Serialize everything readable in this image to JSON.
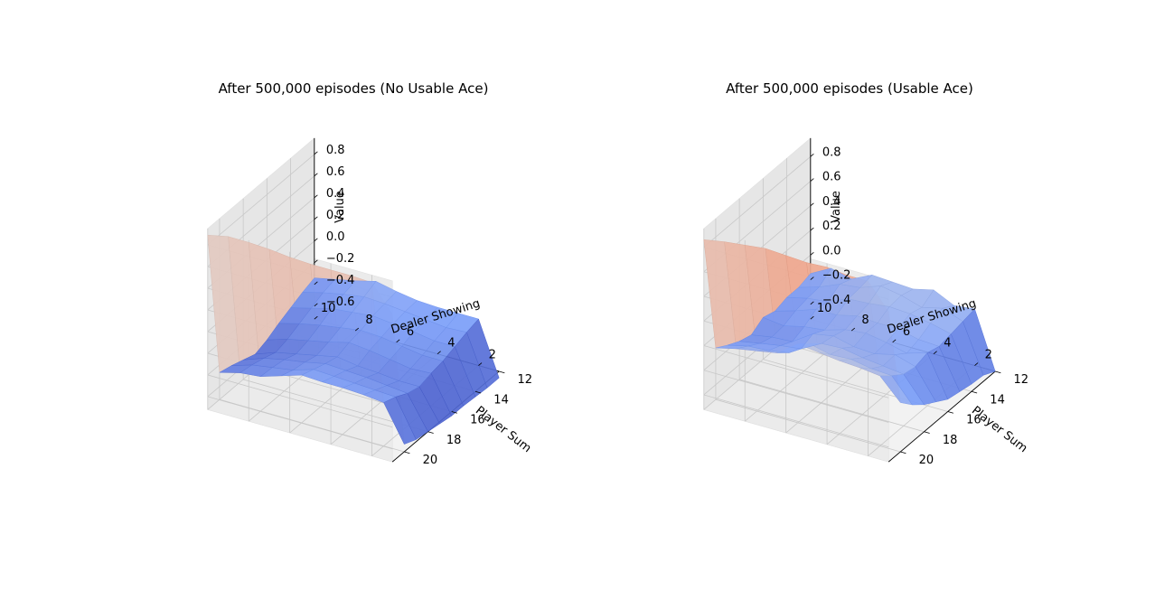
{
  "chart_data": [
    {
      "type": "surface",
      "title": "After 500,000 episodes (No Usable Ace)",
      "xlabel": "Dealer Showing",
      "ylabel": "Player Sum",
      "zlabel": "Value",
      "x": [
        1,
        2,
        3,
        4,
        5,
        6,
        7,
        8,
        9,
        10
      ],
      "y": [
        12,
        13,
        14,
        15,
        16,
        17,
        18,
        19,
        20,
        21
      ],
      "x_ticks": [
        2,
        4,
        6,
        8,
        10
      ],
      "y_ticks": [
        12,
        14,
        16,
        18,
        20
      ],
      "z_ticks": [
        "−0.6",
        "−0.4",
        "−0.2",
        "0.0",
        "0.2",
        "0.4",
        "0.6",
        "0.8"
      ],
      "zlim": [
        -0.72,
        0.95
      ],
      "colormap": "coolwarm",
      "grid": true,
      "z": [
        [
          -0.78,
          -0.29,
          -0.29,
          -0.29,
          -0.28,
          -0.25,
          -0.21,
          -0.26,
          -0.3,
          -0.34
        ],
        [
          -0.78,
          -0.32,
          -0.33,
          -0.31,
          -0.29,
          -0.27,
          -0.26,
          -0.29,
          -0.33,
          -0.38
        ],
        [
          -0.77,
          -0.36,
          -0.36,
          -0.33,
          -0.31,
          -0.29,
          -0.31,
          -0.33,
          -0.38,
          -0.43
        ],
        [
          -0.76,
          -0.4,
          -0.4,
          -0.37,
          -0.34,
          -0.33,
          -0.36,
          -0.39,
          -0.43,
          -0.48
        ],
        [
          -0.76,
          -0.42,
          -0.43,
          -0.4,
          -0.37,
          -0.35,
          -0.4,
          -0.44,
          -0.48,
          -0.54
        ],
        [
          -0.74,
          -0.45,
          -0.45,
          -0.43,
          -0.42,
          -0.39,
          -0.43,
          -0.47,
          -0.51,
          -0.58
        ],
        [
          -0.72,
          -0.42,
          -0.4,
          -0.38,
          -0.37,
          -0.36,
          -0.4,
          -0.43,
          -0.47,
          -0.54
        ],
        [
          -0.7,
          -0.36,
          -0.35,
          -0.34,
          -0.33,
          -0.32,
          -0.38,
          -0.41,
          -0.44,
          -0.5
        ],
        [
          -0.65,
          -0.32,
          -0.3,
          -0.29,
          -0.29,
          -0.28,
          -0.34,
          -0.4,
          -0.42,
          -0.47
        ],
        [
          0.64,
          0.88,
          0.89,
          0.89,
          0.89,
          0.9,
          0.92,
          0.93,
          0.93,
          0.89
        ]
      ]
    },
    {
      "type": "surface",
      "title": "After 500,000 episodes (Usable Ace)",
      "xlabel": "Dealer Showing",
      "ylabel": "Player Sum",
      "zlabel": "Value",
      "x": [
        1,
        2,
        3,
        4,
        5,
        6,
        7,
        8,
        9,
        10
      ],
      "y": [
        12,
        13,
        14,
        15,
        16,
        17,
        18,
        19,
        20,
        21
      ],
      "x_ticks": [
        2,
        4,
        6,
        8,
        10
      ],
      "y_ticks": [
        12,
        14,
        16,
        18,
        20
      ],
      "z_ticks": [
        "−0.4",
        "−0.2",
        "0.0",
        "0.2",
        "0.4",
        "0.6",
        "0.8"
      ],
      "zlim": [
        -0.52,
        0.95
      ],
      "colormap": "coolwarm",
      "grid": true,
      "z": [
        [
          -0.52,
          -0.06,
          -0.08,
          0.0,
          -0.04,
          -0.03,
          -0.02,
          -0.1,
          -0.06,
          -0.15
        ],
        [
          -0.47,
          -0.08,
          -0.02,
          -0.06,
          -0.01,
          0.02,
          -0.04,
          -0.06,
          -0.13,
          -0.18
        ],
        [
          -0.46,
          -0.1,
          -0.06,
          -0.03,
          -0.02,
          -0.04,
          -0.05,
          -0.12,
          -0.14,
          -0.18
        ],
        [
          -0.44,
          -0.12,
          -0.11,
          -0.07,
          -0.07,
          -0.06,
          -0.1,
          -0.1,
          -0.16,
          -0.21
        ],
        [
          -0.42,
          -0.09,
          -0.14,
          -0.1,
          -0.07,
          -0.09,
          -0.14,
          -0.16,
          -0.2,
          -0.18
        ],
        [
          -0.36,
          -0.12,
          -0.07,
          -0.11,
          -0.1,
          -0.06,
          -0.09,
          -0.2,
          -0.21,
          -0.24
        ],
        [
          -0.3,
          -0.1,
          -0.08,
          -0.06,
          -0.03,
          -0.04,
          -0.13,
          -0.15,
          -0.18,
          -0.21
        ],
        [
          -0.22,
          -0.03,
          -0.02,
          0.01,
          0.0,
          0.04,
          -0.08,
          -0.11,
          -0.12,
          -0.16
        ],
        [
          -0.12,
          0.05,
          0.07,
          0.08,
          0.1,
          0.12,
          0.0,
          -0.03,
          -0.06,
          -0.1
        ],
        [
          0.7,
          0.9,
          0.9,
          0.92,
          0.91,
          0.92,
          0.93,
          0.91,
          0.89,
          0.86
        ]
      ]
    }
  ]
}
